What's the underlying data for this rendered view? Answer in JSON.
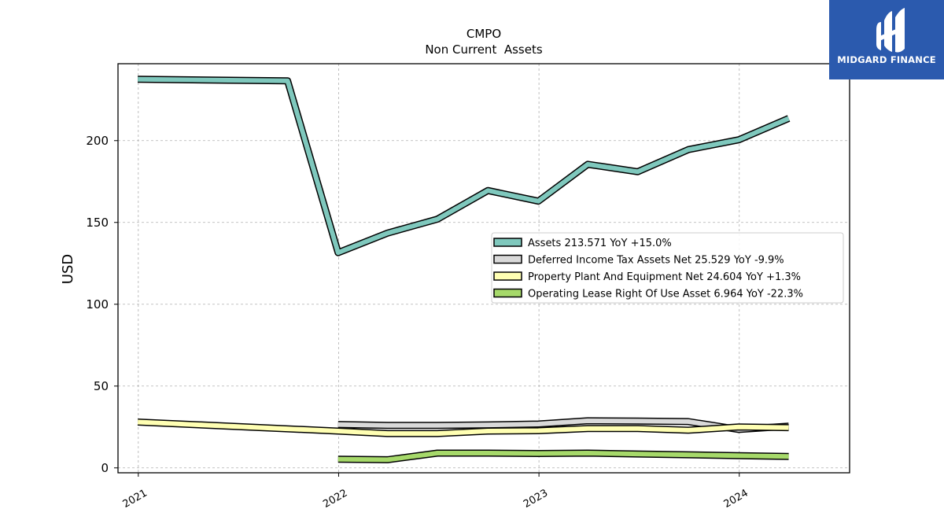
{
  "brand": {
    "name": "MIDGARD FINANCE",
    "color": "#2b5aae"
  },
  "chart_data": {
    "type": "line",
    "title": "CMPO",
    "subtitle": "Non Current  Assets",
    "ylabel": "USD",
    "xlabel": "",
    "xlim": [
      "2020-11-25",
      "2024-07-20"
    ],
    "ylim": [
      -3,
      247
    ],
    "yticks": [
      0,
      50,
      100,
      150,
      200
    ],
    "xticks": [
      {
        "label": "2021",
        "date": "2021-01-01"
      },
      {
        "label": "2022",
        "date": "2022-01-01"
      },
      {
        "label": "2023",
        "date": "2023-01-01"
      },
      {
        "label": "2024",
        "date": "2024-01-01"
      }
    ],
    "grid": true,
    "legend_position": "center-right",
    "series": [
      {
        "name": "Assets",
        "legend": "Assets  213.571 YoY +15.0%",
        "color": "#7fc8bd",
        "points": [
          [
            "2020-12-31",
            237.5
          ],
          [
            "2021-09-30",
            236.5
          ],
          [
            "2021-12-31",
            131.5
          ],
          [
            "2022-03-31",
            143.5
          ],
          [
            "2022-06-30",
            152.0
          ],
          [
            "2022-09-30",
            169.5
          ],
          [
            "2022-12-31",
            163.0
          ],
          [
            "2023-03-31",
            185.5
          ],
          [
            "2023-06-30",
            181.0
          ],
          [
            "2023-09-30",
            194.5
          ],
          [
            "2023-12-31",
            200.5
          ],
          [
            "2024-03-31",
            213.6
          ]
        ]
      },
      {
        "name": "Deferred Income Tax Assets Net",
        "legend": "Deferred Income Tax Assets Net  25.529 YoY -9.9%",
        "color": "#d9d9d9",
        "points": [
          [
            "2021-12-31",
            26.5
          ],
          [
            "2022-03-31",
            26.0
          ],
          [
            "2022-06-30",
            26.0
          ],
          [
            "2022-09-30",
            26.3
          ],
          [
            "2022-12-31",
            26.8
          ],
          [
            "2023-03-31",
            28.8
          ],
          [
            "2023-06-30",
            28.6
          ],
          [
            "2023-09-30",
            28.3
          ],
          [
            "2023-12-31",
            23.5
          ],
          [
            "2024-03-31",
            25.5
          ]
        ]
      },
      {
        "name": "Property Plant And Equipment Net",
        "legend": "Property Plant And Equipment Net  24.604 YoY +1.3%",
        "color": "#ffffb3",
        "points": [
          [
            "2020-12-31",
            28.0
          ],
          [
            "2021-12-31",
            22.5
          ],
          [
            "2022-03-31",
            21.0
          ],
          [
            "2022-06-30",
            21.0
          ],
          [
            "2022-09-30",
            22.5
          ],
          [
            "2022-12-31",
            22.7
          ],
          [
            "2023-03-31",
            24.0
          ],
          [
            "2023-06-30",
            24.0
          ],
          [
            "2023-09-30",
            23.0
          ],
          [
            "2023-12-31",
            25.0
          ],
          [
            "2024-03-31",
            24.6
          ]
        ]
      },
      {
        "name": "Operating Lease Right Of Use Asset",
        "legend": "Operating Lease Right Of Use Asset  6.964 YoY -22.3%",
        "color": "#a6d96a",
        "points": [
          [
            "2021-12-31",
            5.3
          ],
          [
            "2022-03-31",
            5.0
          ],
          [
            "2022-06-30",
            9.0
          ],
          [
            "2022-09-30",
            9.0
          ],
          [
            "2022-12-31",
            8.8
          ],
          [
            "2023-03-31",
            9.0
          ],
          [
            "2023-06-30",
            8.5
          ],
          [
            "2023-09-30",
            8.0
          ],
          [
            "2023-12-31",
            7.5
          ],
          [
            "2024-03-31",
            7.0
          ]
        ]
      }
    ]
  }
}
